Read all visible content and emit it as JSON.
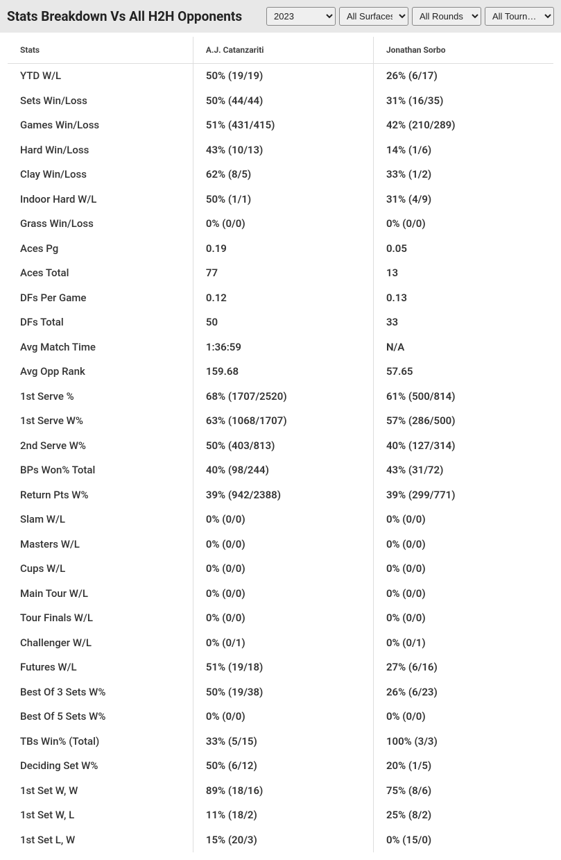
{
  "header": {
    "title": "Stats Breakdown Vs All H2H Opponents"
  },
  "filters": {
    "year": {
      "selected": "2023",
      "options": [
        "2023"
      ]
    },
    "surface": {
      "selected": "All Surfaces",
      "options": [
        "All Surfaces"
      ]
    },
    "round": {
      "selected": "All Rounds",
      "options": [
        "All Rounds"
      ]
    },
    "tourn": {
      "selected": "All Tourn…",
      "options": [
        "All Tourn…"
      ]
    }
  },
  "table": {
    "columns": [
      "Stats",
      "A.J. Catanzariti",
      "Jonathan Sorbo"
    ],
    "column_widths": [
      "34%",
      "33%",
      "33%"
    ],
    "header_bg": "#ffffff",
    "header_fontsize": 12,
    "body_fontsize": 15,
    "border_color": "#dddddd",
    "text_color": "#333333",
    "rows": [
      [
        "YTD W/L",
        "50% (19/19)",
        "26% (6/17)"
      ],
      [
        "Sets Win/Loss",
        "50% (44/44)",
        "31% (16/35)"
      ],
      [
        "Games Win/Loss",
        "51% (431/415)",
        "42% (210/289)"
      ],
      [
        "Hard Win/Loss",
        "43% (10/13)",
        "14% (1/6)"
      ],
      [
        "Clay Win/Loss",
        "62% (8/5)",
        "33% (1/2)"
      ],
      [
        "Indoor Hard W/L",
        "50% (1/1)",
        "31% (4/9)"
      ],
      [
        "Grass Win/Loss",
        "0% (0/0)",
        "0% (0/0)"
      ],
      [
        "Aces Pg",
        "0.19",
        "0.05"
      ],
      [
        "Aces Total",
        "77",
        "13"
      ],
      [
        "DFs Per Game",
        "0.12",
        "0.13"
      ],
      [
        "DFs Total",
        "50",
        "33"
      ],
      [
        "Avg Match Time",
        "1:36:59",
        "N/A"
      ],
      [
        "Avg Opp Rank",
        "159.68",
        "57.65"
      ],
      [
        "1st Serve %",
        "68% (1707/2520)",
        "61% (500/814)"
      ],
      [
        "1st Serve W%",
        "63% (1068/1707)",
        "57% (286/500)"
      ],
      [
        "2nd Serve W%",
        "50% (403/813)",
        "40% (127/314)"
      ],
      [
        "BPs Won% Total",
        "40% (98/244)",
        "43% (31/72)"
      ],
      [
        "Return Pts W%",
        "39% (942/2388)",
        "39% (299/771)"
      ],
      [
        "Slam W/L",
        "0% (0/0)",
        "0% (0/0)"
      ],
      [
        "Masters W/L",
        "0% (0/0)",
        "0% (0/0)"
      ],
      [
        "Cups W/L",
        "0% (0/0)",
        "0% (0/0)"
      ],
      [
        "Main Tour W/L",
        "0% (0/0)",
        "0% (0/0)"
      ],
      [
        "Tour Finals W/L",
        "0% (0/0)",
        "0% (0/0)"
      ],
      [
        "Challenger W/L",
        "0% (0/1)",
        "0% (0/1)"
      ],
      [
        "Futures W/L",
        "51% (19/18)",
        "27% (6/16)"
      ],
      [
        "Best Of 3 Sets W%",
        "50% (19/38)",
        "26% (6/23)"
      ],
      [
        "Best Of 5 Sets W%",
        "0% (0/0)",
        "0% (0/0)"
      ],
      [
        "TBs Win% (Total)",
        "33% (5/15)",
        "100% (3/3)"
      ],
      [
        "Deciding Set W%",
        "50% (6/12)",
        "20% (1/5)"
      ],
      [
        "1st Set W, W",
        "89% (18/16)",
        "75% (8/6)"
      ],
      [
        "1st Set W, L",
        "11% (18/2)",
        "25% (8/2)"
      ],
      [
        "1st Set L, W",
        "15% (20/3)",
        "0% (15/0)"
      ]
    ]
  },
  "colors": {
    "header_bar_bg": "#e8e8e8",
    "page_bg": "#ffffff",
    "title_color": "#222222",
    "select_border": "#888888",
    "select_bg": "#efefef"
  }
}
